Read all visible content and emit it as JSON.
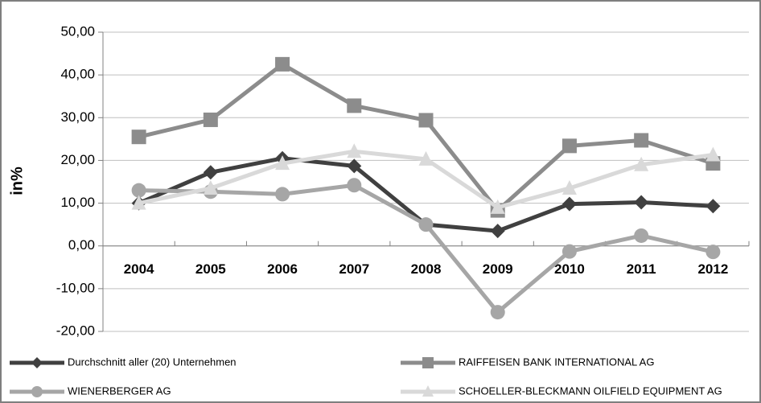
{
  "chart_data": {
    "type": "line",
    "y_label": "in%",
    "categories": [
      "2004",
      "2005",
      "2006",
      "2007",
      "2008",
      "2009",
      "2010",
      "2011",
      "2012"
    ],
    "series": [
      {
        "name": "Durchschnitt aller (20) Unternehmen",
        "color": "#404040",
        "marker": "diamond",
        "values": [
          10.0,
          17.2,
          20.5,
          18.7,
          5.0,
          3.5,
          9.8,
          10.2,
          9.3
        ]
      },
      {
        "name": "RAIFFEISEN BANK INTERNATIONAL AG",
        "color": "#8c8c8c",
        "marker": "square",
        "values": [
          25.5,
          29.5,
          42.5,
          32.8,
          29.4,
          8.3,
          23.4,
          24.7,
          19.3
        ]
      },
      {
        "name": "WIENERBERGER AG",
        "color": "#a6a6a6",
        "marker": "circle",
        "values": [
          13.0,
          12.7,
          12.1,
          14.2,
          5.0,
          -15.5,
          -1.3,
          2.4,
          -1.4
        ]
      },
      {
        "name": "SCHOELLER-BLECKMANN OILFIELD EQUIPMENT AG",
        "color": "#d9d9d9",
        "marker": "triangle",
        "values": [
          10.0,
          13.5,
          19.3,
          22.1,
          20.3,
          9.0,
          13.5,
          19.0,
          21.3
        ]
      }
    ],
    "ylim": [
      -20,
      50
    ],
    "yticks": [
      {
        "value": -20,
        "label": "-20,00"
      },
      {
        "value": -10,
        "label": "-10,00"
      },
      {
        "value": 0,
        "label": "0,00"
      },
      {
        "value": 10,
        "label": "10,00"
      },
      {
        "value": 20,
        "label": "20,00"
      },
      {
        "value": 30,
        "label": "30,00"
      },
      {
        "value": 40,
        "label": "40,00"
      },
      {
        "value": 50,
        "label": "50,00"
      }
    ],
    "grid": true,
    "legend": "bottom"
  }
}
